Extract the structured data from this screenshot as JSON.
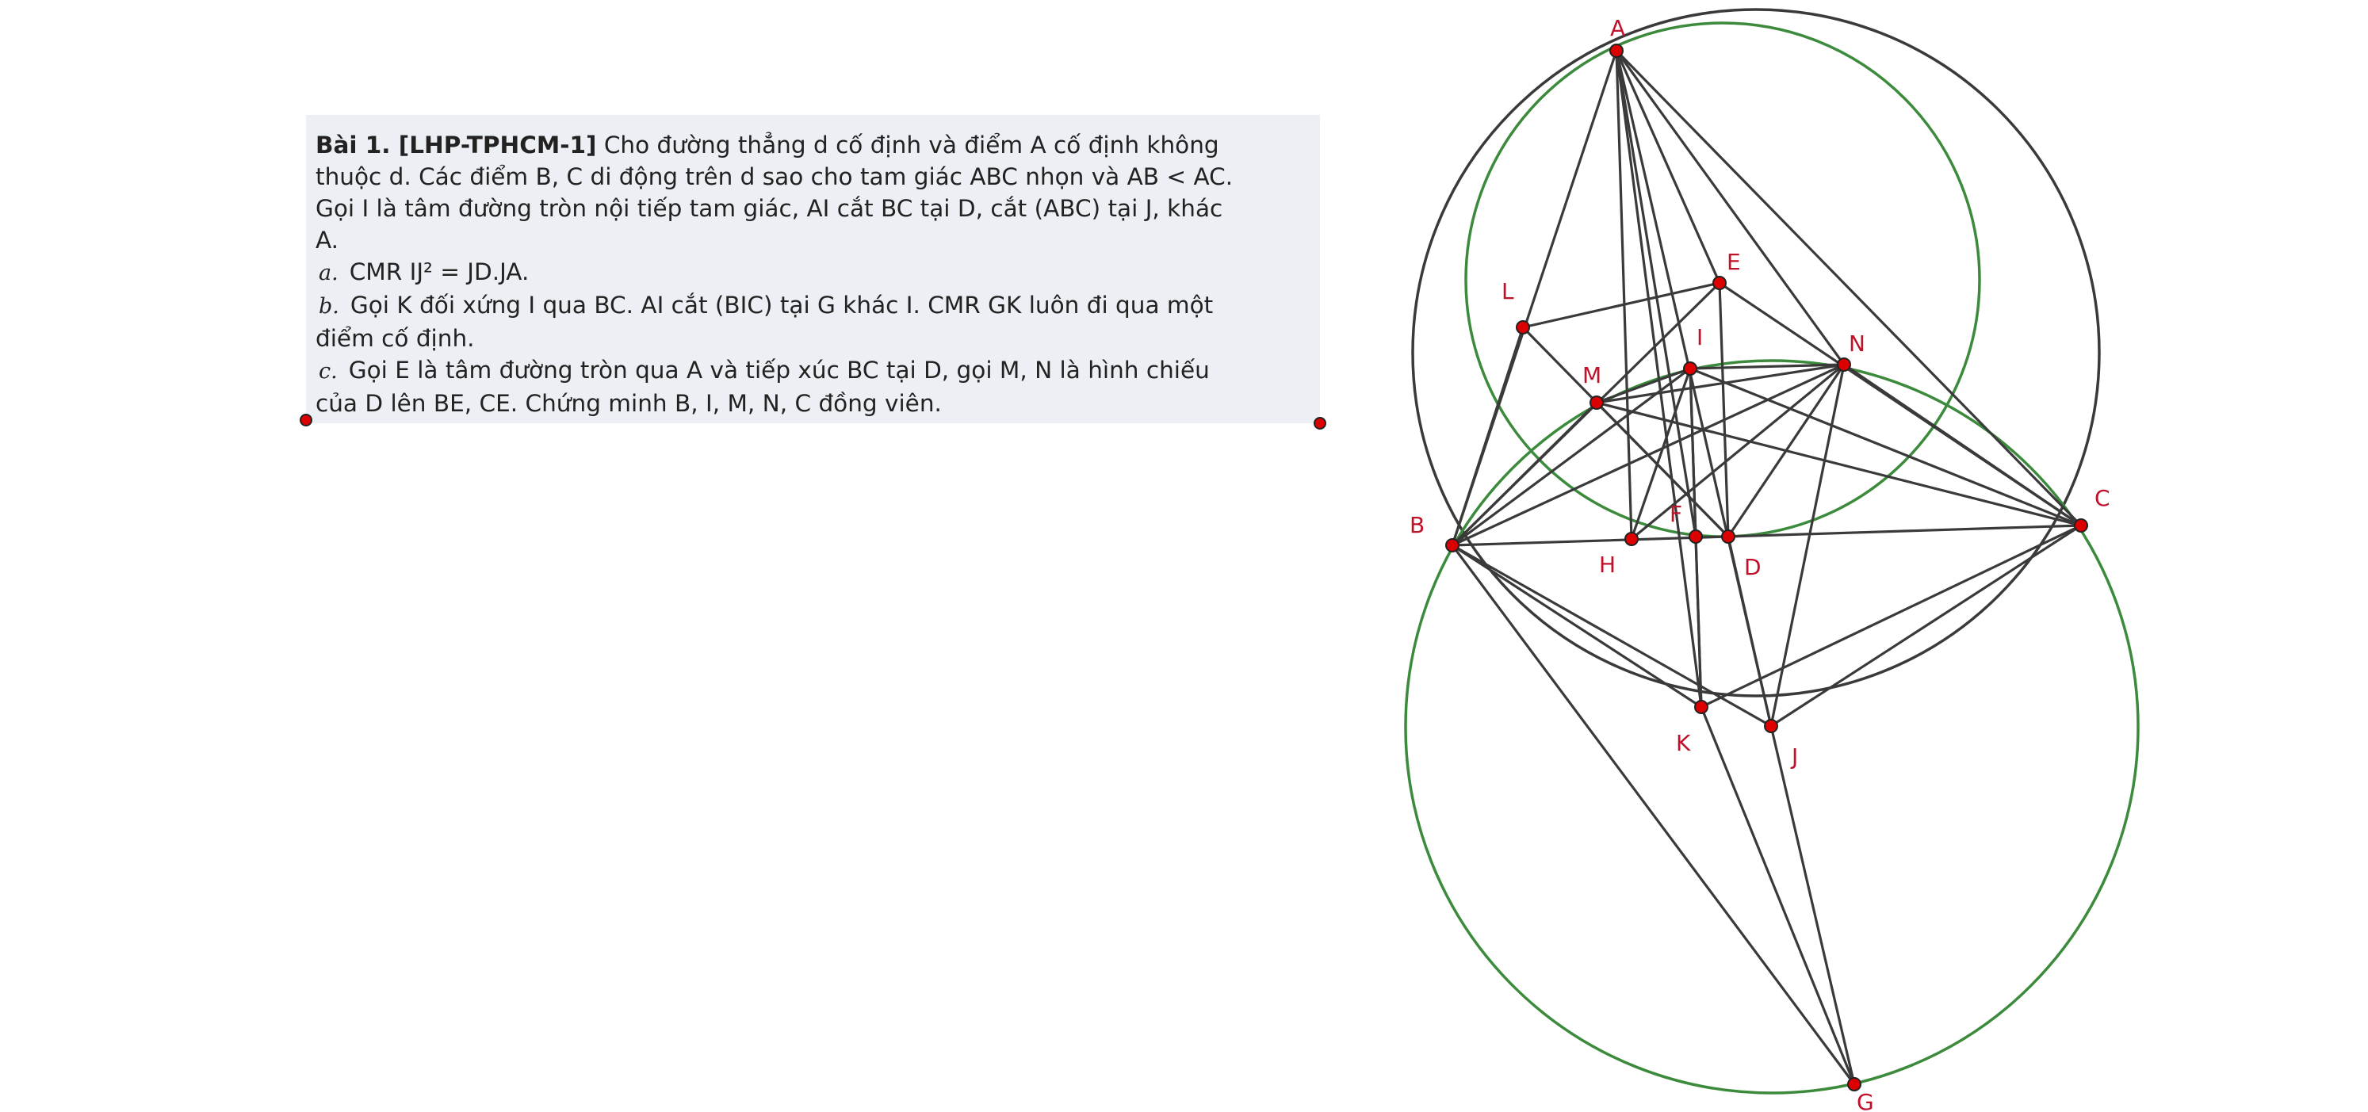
{
  "problem": {
    "title": "Bài 1. [LHP-TPHCM-1]",
    "line1": " Cho đường thẳng d cố định và điểm A cố định không",
    "line2": "thuộc d.  Các điểm B, C di động trên d sao cho tam giác ABC nhọn và AB < AC.",
    "line3": "Gọi I là tâm đường tròn nội tiếp tam giác, AI cắt BC tại D,  cắt (ABC) tại J,  khác",
    "line4": "A.",
    "a_label": "a.",
    "a_text": "CMR IJ² = JD.JA.",
    "b_label": "b.",
    "b_text1": "Gọi K đối xứng I qua BC.  AI cắt (BIC) tại G khác I.  CMR GK luôn đi qua một",
    "b_text2": "điểm cố định.",
    "c_label": "c.",
    "c_text1": "Gọi E là tâm đường tròn qua A và tiếp xúc BC tại D,  gọi M, N là hình chiếu",
    "c_text2": "của D lên BE, CE.  Chứng minh B, I, M, N, C đồng viên."
  },
  "points": {
    "A": "A",
    "B": "B",
    "C": "C",
    "D": "D",
    "E": "E",
    "F": "F",
    "G": "G",
    "H": "H",
    "I": "I",
    "J": "J",
    "K": "K",
    "L": "L",
    "M": "M",
    "N": "N"
  },
  "colors": {
    "point_fill": "#dd0000",
    "label": "#c0102a",
    "segment": "#3a3a3a",
    "circle_dark": "#3a3a3a",
    "circle_green": "#3c8a3c",
    "box_background": "#eceff3"
  }
}
